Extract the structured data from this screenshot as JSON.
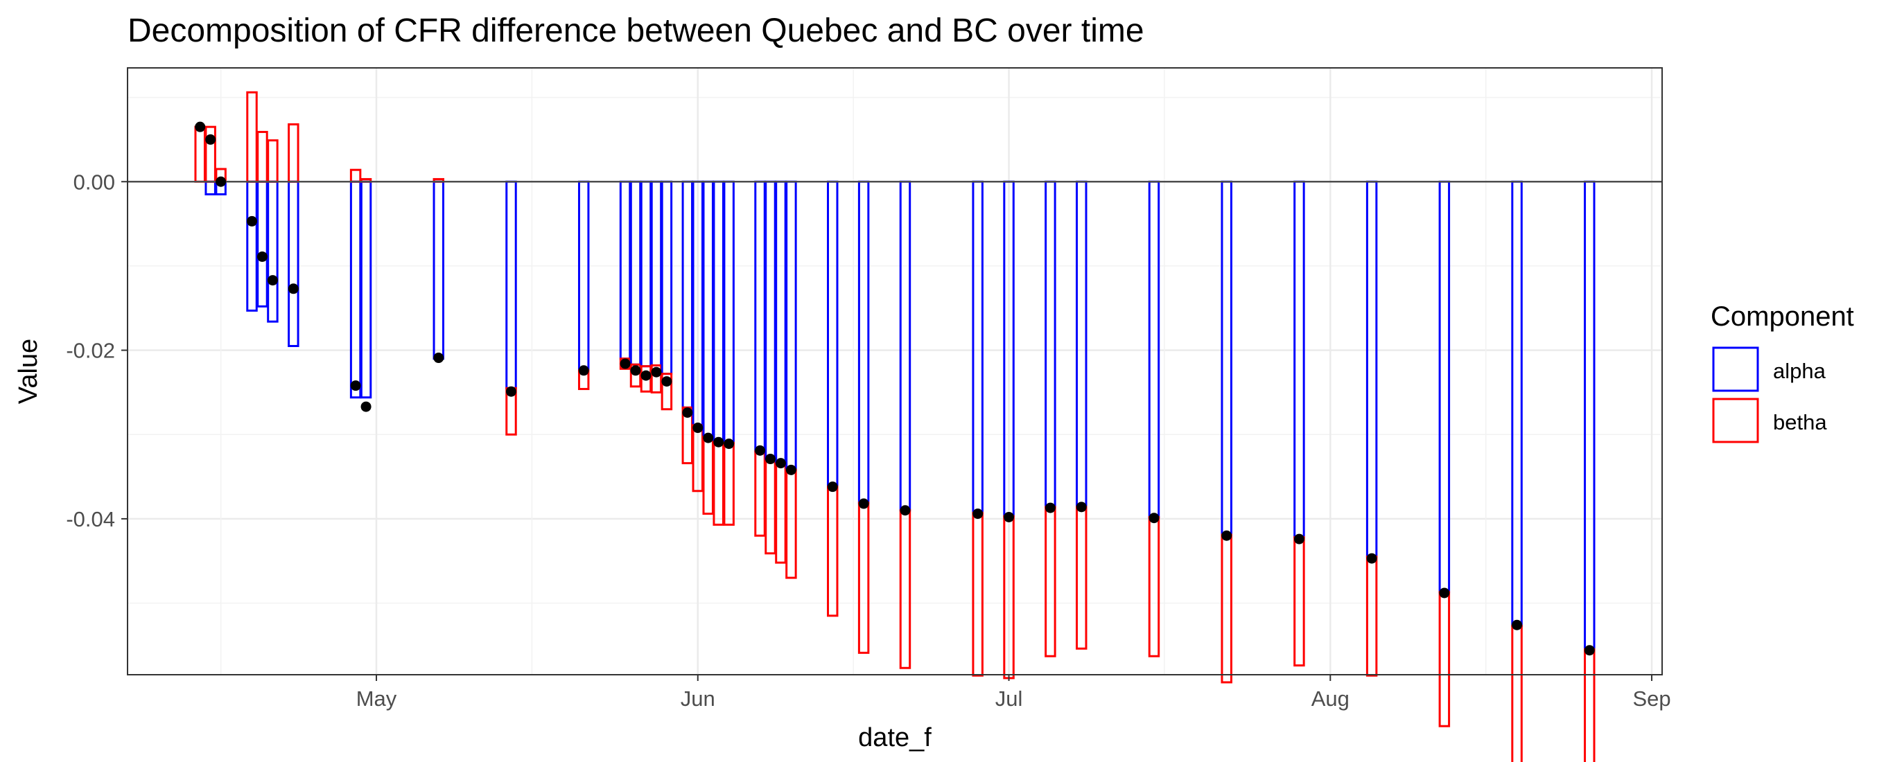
{
  "chart_data": {
    "type": "bar",
    "subtype": "stacked-bar-with-point-overlay",
    "title": "Decomposition of CFR difference between Quebec and BC over time",
    "xlabel": "date_f",
    "ylabel": "Value",
    "x_axis": {
      "kind": "date",
      "min": "2020-04-07",
      "max": "2020-09-02",
      "ticks": [
        "May",
        "Jun",
        "Jul",
        "Aug",
        "Sep"
      ]
    },
    "y_axis": {
      "min": -0.0585,
      "max": 0.0135,
      "ticks": [
        0.0,
        -0.02,
        -0.04
      ],
      "tick_labels": [
        "0.00",
        "-0.02",
        "-0.04"
      ]
    },
    "grid": true,
    "legend": {
      "title": "Component",
      "placement": "right",
      "entries": [
        "alpha",
        "betha"
      ]
    },
    "colors": {
      "alpha": "#0000ff",
      "betha": "#ff0000",
      "total": "#000000",
      "zero_line": "#4d4d4d"
    },
    "dates": [
      "2020-04-14",
      "2020-04-15",
      "2020-04-16",
      "2020-04-19",
      "2020-04-20",
      "2020-04-21",
      "2020-04-23",
      "2020-04-29",
      "2020-04-30",
      "2020-05-07",
      "2020-05-14",
      "2020-05-21",
      "2020-05-25",
      "2020-05-26",
      "2020-05-27",
      "2020-05-28",
      "2020-05-29",
      "2020-05-31",
      "2020-06-01",
      "2020-06-02",
      "2020-06-03",
      "2020-06-04",
      "2020-06-07",
      "2020-06-08",
      "2020-06-09",
      "2020-06-10",
      "2020-06-14",
      "2020-06-17",
      "2020-06-21",
      "2020-06-28",
      "2020-07-01",
      "2020-07-05",
      "2020-07-08",
      "2020-07-15",
      "2020-07-22",
      "2020-07-29",
      "2020-08-05",
      "2020-08-12",
      "2020-08-19",
      "2020-08-26"
    ],
    "series": [
      {
        "name": "alpha",
        "values": [
          0,
          -0.0015,
          -0.0015,
          -0.0153,
          -0.0148,
          -0.0166,
          -0.0195,
          -0.0256,
          -0.0256,
          -0.021,
          -0.0245,
          -0.0224,
          -0.021,
          -0.0217,
          -0.0219,
          -0.0218,
          -0.0228,
          -0.0268,
          -0.0289,
          -0.0303,
          -0.0309,
          -0.031,
          -0.032,
          -0.0331,
          -0.0335,
          -0.0342,
          -0.0362,
          -0.0381,
          -0.039,
          -0.0393,
          -0.0397,
          -0.0386,
          -0.0386,
          -0.0398,
          -0.0419,
          -0.0422,
          -0.0445,
          -0.0487,
          -0.0527,
          -0.0555
        ]
      },
      {
        "name": "betha",
        "values": [
          0.0065,
          0.0065,
          0.0015,
          0.0106,
          0.0059,
          0.0049,
          0.0068,
          0.0014,
          0.0003,
          0.0003,
          -0.0055,
          -0.0022,
          -0.0012,
          -0.0026,
          -0.003,
          -0.0032,
          -0.0042,
          -0.0066,
          -0.0078,
          -0.0091,
          -0.0098,
          -0.0097,
          -0.01,
          -0.011,
          -0.0117,
          -0.0128,
          -0.0153,
          -0.0178,
          -0.0187,
          -0.0193,
          -0.0192,
          -0.0177,
          -0.0168,
          -0.0165,
          -0.0175,
          -0.0152,
          -0.0141,
          -0.0159,
          -0.0165,
          -0.0174
        ]
      },
      {
        "name": "total",
        "values": [
          0.0065,
          0.005,
          0.0,
          -0.0047,
          -0.0089,
          -0.0117,
          -0.0127,
          -0.0242,
          -0.0267,
          -0.0209,
          -0.0249,
          -0.0224,
          -0.0216,
          -0.0224,
          -0.023,
          -0.0226,
          -0.0237,
          -0.0274,
          -0.0292,
          -0.0304,
          -0.0309,
          -0.0311,
          -0.0319,
          -0.0329,
          -0.0334,
          -0.0342,
          -0.0362,
          -0.0382,
          -0.039,
          -0.0394,
          -0.0398,
          -0.0387,
          -0.0386,
          -0.0399,
          -0.042,
          -0.0424,
          -0.0447,
          -0.0488,
          -0.0526,
          -0.0556
        ]
      }
    ]
  }
}
